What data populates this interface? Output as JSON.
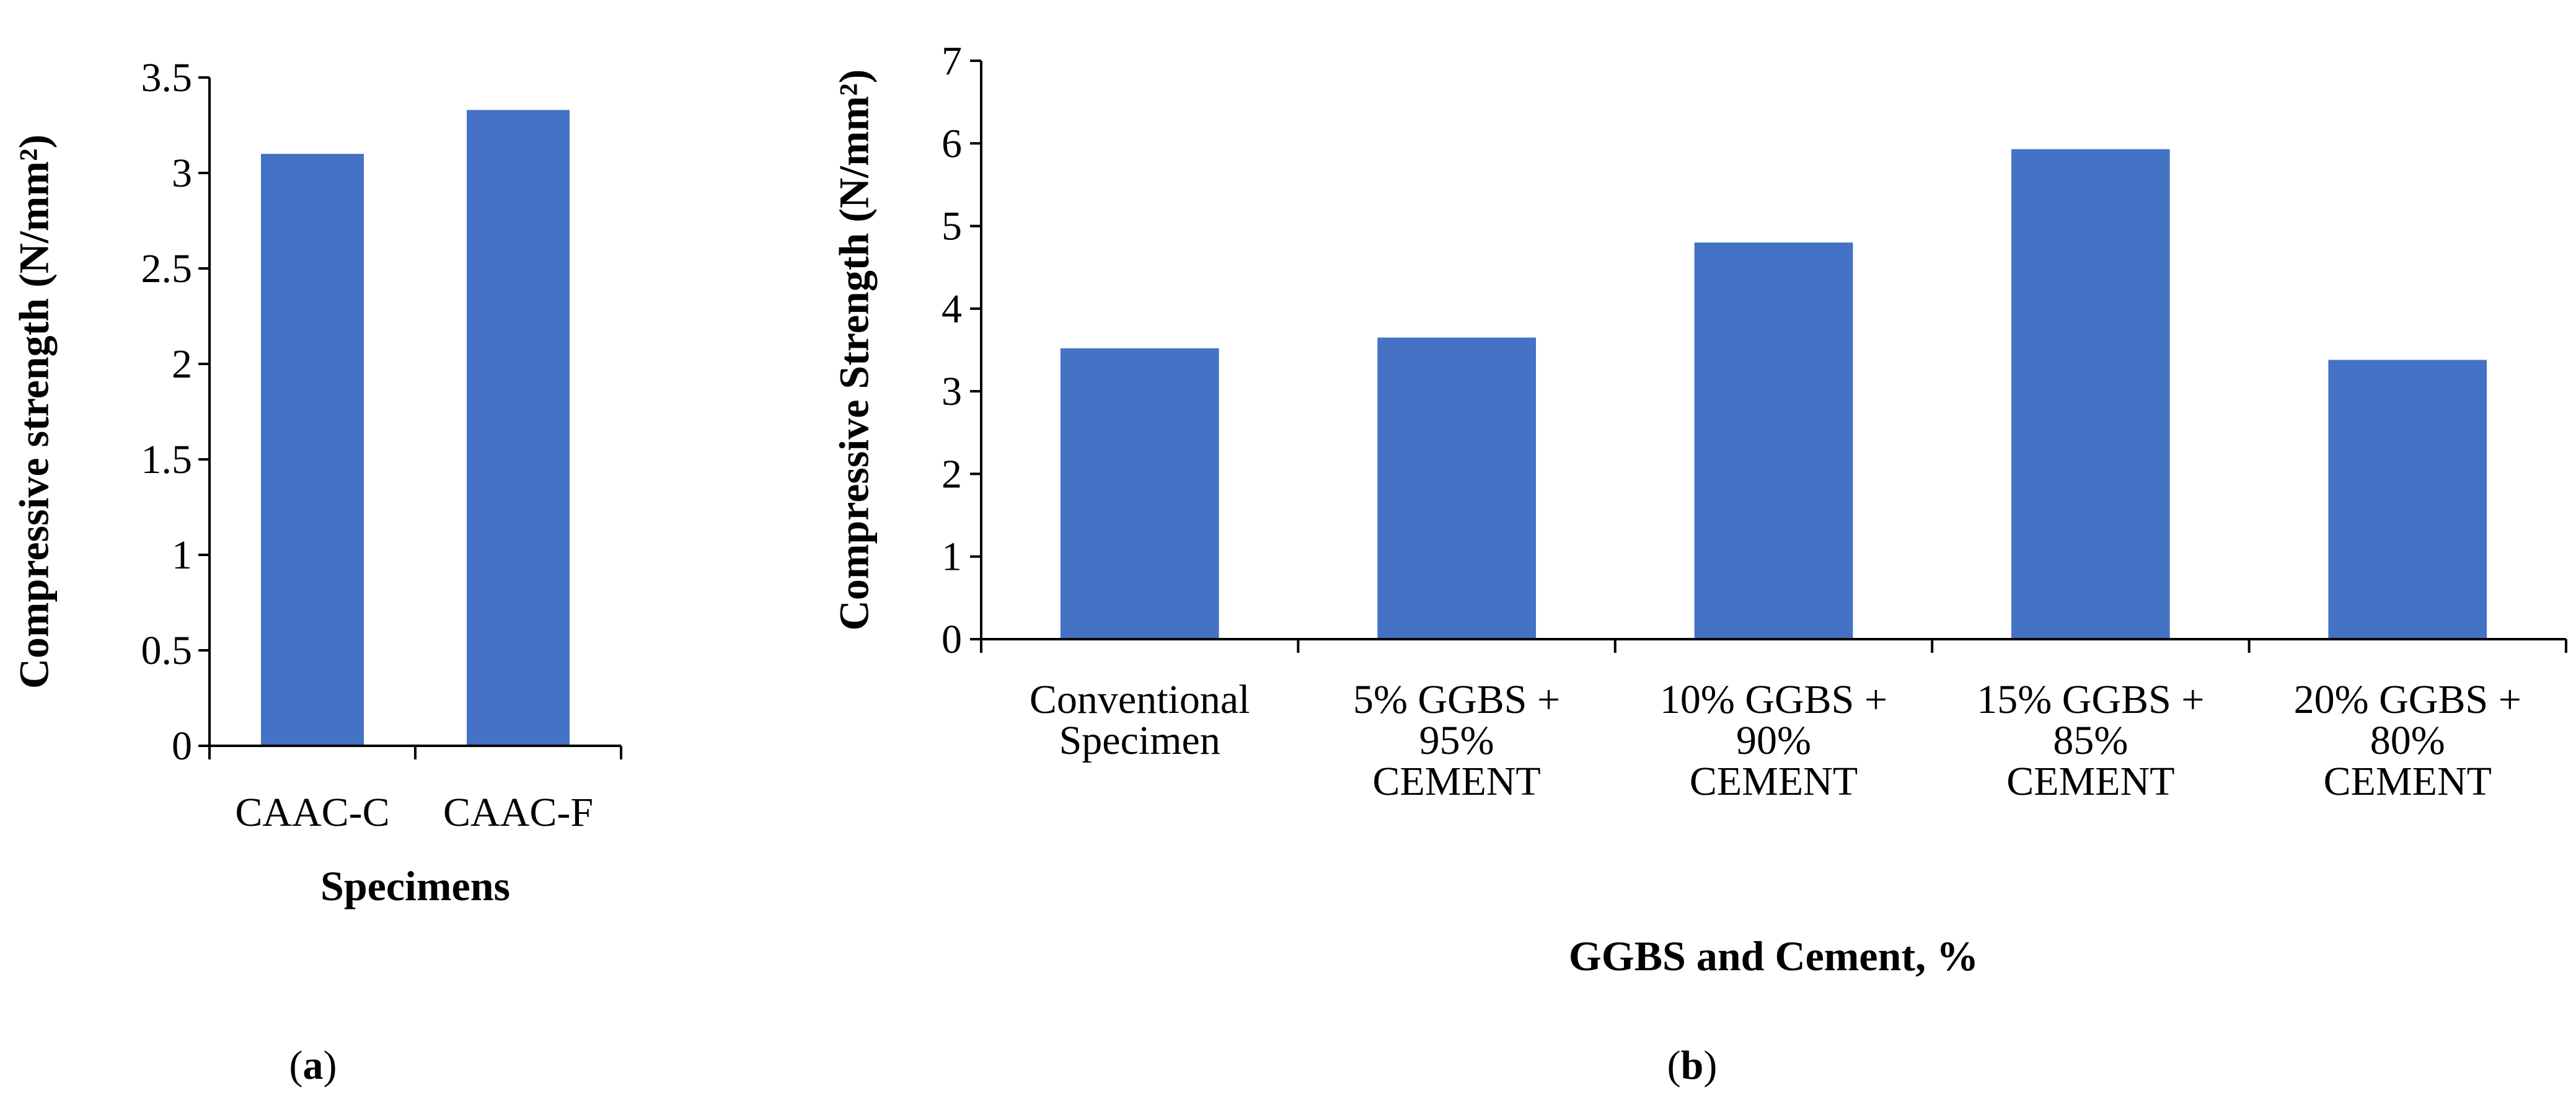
{
  "chart_data": [
    {
      "type": "bar",
      "panel_label": "a",
      "categories": [
        "CAAC-C",
        "CAAC-F"
      ],
      "values": [
        3.1,
        3.33
      ],
      "title": "",
      "xlabel": "Specimens",
      "ylabel": "Compressive strength (N/mm²)",
      "ylim": [
        0,
        3.5
      ],
      "yticks": [
        "0",
        "0.5",
        "1",
        "1.5",
        "2",
        "2.5",
        "3",
        "3.5"
      ],
      "bar_color": "#4472C4",
      "grid": false,
      "legend": "none"
    },
    {
      "type": "bar",
      "panel_label": "b",
      "categories": [
        [
          "Conventional",
          "Specimen"
        ],
        [
          "5% GGBS +",
          "95%",
          "CEMENT"
        ],
        [
          "10% GGBS +",
          "90%",
          "CEMENT"
        ],
        [
          "15% GGBS +",
          "85%",
          "CEMENT"
        ],
        [
          "20% GGBS +",
          "80%",
          "CEMENT"
        ]
      ],
      "values": [
        3.52,
        3.65,
        4.8,
        5.93,
        3.38
      ],
      "title": "",
      "xlabel": "GGBS and Cement, %",
      "ylabel": "Compressive Strength (N/mm²)",
      "ylim": [
        0,
        7
      ],
      "yticks": [
        "0",
        "1",
        "2",
        "3",
        "4",
        "5",
        "6",
        "7"
      ],
      "bar_color": "#4472C4",
      "grid": false,
      "legend": "none"
    }
  ]
}
